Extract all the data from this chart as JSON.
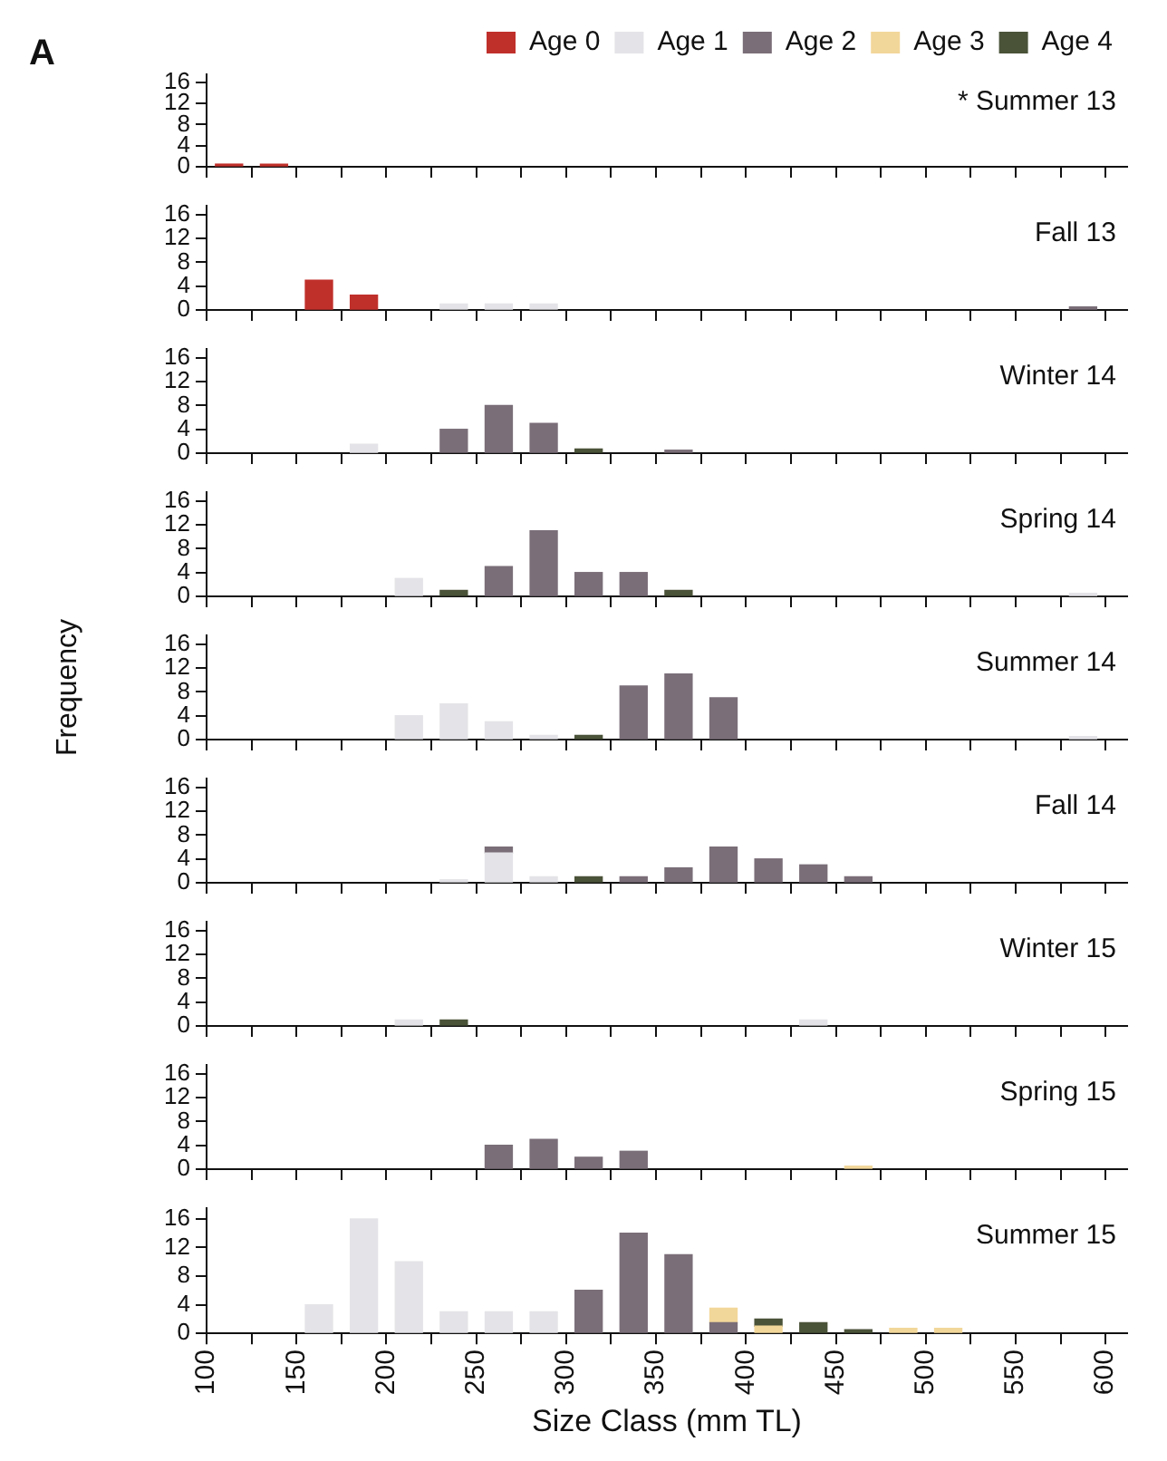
{
  "chart_data": [
    {
      "type": "bar",
      "title": "* Summer 13",
      "annotations": [
        "A"
      ],
      "legend": "top",
      "tick_labels": "y",
      "grid": false,
      "x": [
        112.5,
        137.5
      ],
      "xlim": [
        100,
        612
      ],
      "xticks": [
        100,
        {
          "value": 125,
          "label": null
        },
        150,
        {
          "value": 175,
          "label": null
        },
        200,
        {
          "value": 225,
          "label": null
        },
        250,
        {
          "value": 275,
          "label": null
        },
        300,
        {
          "value": 325,
          "label": null
        },
        350,
        {
          "value": 375,
          "label": null
        },
        400,
        {
          "value": 425,
          "label": null
        },
        450,
        {
          "value": 475,
          "label": null
        },
        500,
        {
          "value": 525,
          "label": null
        },
        550,
        {
          "value": 575,
          "label": null
        },
        600
      ],
      "ylim": [
        0,
        17.5
      ],
      "yticks": [
        0,
        4,
        8,
        12,
        16
      ],
      "series": [
        {
          "name": "Age 0",
          "color": "#c0302b",
          "values": [
            0.5,
            0.5
          ]
        },
        {
          "name": "Age 1",
          "color": "#e4e4e8",
          "values": [
            null,
            null
          ]
        },
        {
          "name": "Age 2",
          "color": "#7a6e78",
          "values": [
            null,
            null
          ]
        },
        {
          "name": "Age 3",
          "color": "#f2d79a",
          "values": [
            null,
            null
          ]
        },
        {
          "name": "Age 4",
          "color": "#4a5238",
          "values": [
            null,
            null
          ]
        }
      ]
    },
    {
      "type": "bar",
      "title": "Fall 13",
      "tick_labels": "y",
      "grid": false,
      "x": [
        162.5,
        187.5,
        237.5,
        262.5,
        287.5,
        587.5
      ],
      "xlim": [
        100,
        612
      ],
      "xticks": [
        100,
        {
          "value": 125,
          "label": null
        },
        150,
        {
          "value": 175,
          "label": null
        },
        200,
        {
          "value": 225,
          "label": null
        },
        250,
        {
          "value": 275,
          "label": null
        },
        300,
        {
          "value": 325,
          "label": null
        },
        350,
        {
          "value": 375,
          "label": null
        },
        400,
        {
          "value": 425,
          "label": null
        },
        450,
        {
          "value": 475,
          "label": null
        },
        500,
        {
          "value": 525,
          "label": null
        },
        550,
        {
          "value": 575,
          "label": null
        },
        600
      ],
      "ylim": [
        0,
        17.5
      ],
      "yticks": [
        0,
        4,
        8,
        12,
        16
      ],
      "series": [
        {
          "color": "#c0302b",
          "values": [
            5,
            2.5,
            null,
            null,
            null,
            null
          ]
        },
        {
          "color": "#e4e4e8",
          "values": [
            null,
            null,
            1,
            1,
            1,
            null
          ]
        },
        {
          "color": "#7a6e78",
          "values": [
            null,
            null,
            null,
            null,
            null,
            0.5
          ]
        }
      ]
    },
    {
      "type": "bar",
      "title": "Winter 14",
      "tick_labels": "y",
      "grid": false,
      "x": [
        187.5,
        237.5,
        262.5,
        287.5,
        312.5,
        362.5
      ],
      "xlim": [
        100,
        612
      ],
      "xticks": [
        100,
        {
          "value": 125,
          "label": null
        },
        150,
        {
          "value": 175,
          "label": null
        },
        200,
        {
          "value": 225,
          "label": null
        },
        250,
        {
          "value": 275,
          "label": null
        },
        300,
        {
          "value": 325,
          "label": null
        },
        350,
        {
          "value": 375,
          "label": null
        },
        400,
        {
          "value": 425,
          "label": null
        },
        450,
        {
          "value": 475,
          "label": null
        },
        500,
        {
          "value": 525,
          "label": null
        },
        550,
        {
          "value": 575,
          "label": null
        },
        600
      ],
      "ylim": [
        0,
        17.5
      ],
      "yticks": [
        0,
        4,
        8,
        12,
        16
      ],
      "series": [
        {
          "color": "#e4e4e8",
          "values": [
            1.5,
            null,
            null,
            null,
            null,
            null
          ]
        },
        {
          "color": "#7a6e78",
          "values": [
            null,
            4,
            8,
            5,
            null,
            0.5
          ]
        },
        {
          "color": "#4a5238",
          "values": [
            null,
            null,
            null,
            null,
            0.7,
            null
          ]
        }
      ]
    },
    {
      "type": "bar",
      "title": "Spring 14",
      "tick_labels": "y",
      "grid": false,
      "x": [
        212.5,
        237.5,
        262.5,
        287.5,
        312.5,
        337.5,
        362.5,
        587.5
      ],
      "xlim": [
        100,
        612
      ],
      "xticks": [
        100,
        {
          "value": 125,
          "label": null
        },
        150,
        {
          "value": 175,
          "label": null
        },
        200,
        {
          "value": 225,
          "label": null
        },
        250,
        {
          "value": 275,
          "label": null
        },
        300,
        {
          "value": 325,
          "label": null
        },
        350,
        {
          "value": 375,
          "label": null
        },
        400,
        {
          "value": 425,
          "label": null
        },
        450,
        {
          "value": 475,
          "label": null
        },
        500,
        {
          "value": 525,
          "label": null
        },
        550,
        {
          "value": 575,
          "label": null
        },
        600
      ],
      "ylim": [
        0,
        17.5
      ],
      "yticks": [
        0,
        4,
        8,
        12,
        16
      ],
      "series": [
        {
          "color": "#e4e4e8",
          "values": [
            3,
            null,
            null,
            null,
            null,
            null,
            null,
            0.5
          ]
        },
        {
          "color": "#7a6e78",
          "values": [
            null,
            null,
            5,
            11,
            4,
            4,
            null,
            null
          ]
        },
        {
          "color": "#4a5238",
          "values": [
            null,
            1,
            null,
            null,
            null,
            null,
            1,
            null
          ]
        }
      ]
    },
    {
      "type": "bar",
      "title": "Summer 14",
      "ylabel": "Frequency",
      "tick_labels": "y",
      "grid": false,
      "x": [
        212.5,
        237.5,
        262.5,
        287.5,
        312.5,
        337.5,
        362.5,
        387.5,
        587.5
      ],
      "xlim": [
        100,
        612
      ],
      "xticks": [
        100,
        {
          "value": 125,
          "label": null
        },
        150,
        {
          "value": 175,
          "label": null
        },
        200,
        {
          "value": 225,
          "label": null
        },
        250,
        {
          "value": 275,
          "label": null
        },
        300,
        {
          "value": 325,
          "label": null
        },
        350,
        {
          "value": 375,
          "label": null
        },
        400,
        {
          "value": 425,
          "label": null
        },
        450,
        {
          "value": 475,
          "label": null
        },
        500,
        {
          "value": 525,
          "label": null
        },
        550,
        {
          "value": 575,
          "label": null
        },
        600
      ],
      "ylim": [
        0,
        17.5
      ],
      "yticks": [
        0,
        4,
        8,
        12,
        16
      ],
      "series": [
        {
          "color": "#e4e4e8",
          "values": [
            4,
            6,
            3,
            0.7,
            null,
            null,
            null,
            null,
            0.5
          ]
        },
        {
          "color": "#7a6e78",
          "values": [
            null,
            null,
            null,
            null,
            null,
            9,
            11,
            7,
            null
          ]
        },
        {
          "color": "#4a5238",
          "values": [
            null,
            null,
            null,
            null,
            0.7,
            null,
            null,
            null,
            null
          ]
        }
      ]
    },
    {
      "type": "bar",
      "stacked": true,
      "title": "Fall 14",
      "tick_labels": "y",
      "grid": false,
      "x": [
        237.5,
        262.5,
        287.5,
        312.5,
        337.5,
        362.5,
        387.5,
        412.5,
        437.5,
        462.5
      ],
      "xlim": [
        100,
        612
      ],
      "xticks": [
        100,
        {
          "value": 125,
          "label": null
        },
        150,
        {
          "value": 175,
          "label": null
        },
        200,
        {
          "value": 225,
          "label": null
        },
        250,
        {
          "value": 275,
          "label": null
        },
        300,
        {
          "value": 325,
          "label": null
        },
        350,
        {
          "value": 375,
          "label": null
        },
        400,
        {
          "value": 425,
          "label": null
        },
        450,
        {
          "value": 475,
          "label": null
        },
        500,
        {
          "value": 525,
          "label": null
        },
        550,
        {
          "value": 575,
          "label": null
        },
        600
      ],
      "ylim": [
        0,
        17.5
      ],
      "yticks": [
        0,
        4,
        8,
        12,
        16
      ],
      "series": [
        {
          "color": "#e4e4e8",
          "values": [
            0.5,
            5,
            1,
            null,
            null,
            null,
            null,
            null,
            null,
            null
          ]
        },
        {
          "color": "#7a6e78",
          "values": [
            null,
            1,
            null,
            null,
            1,
            2.5,
            6,
            4,
            3,
            1
          ]
        },
        {
          "color": "#4a5238",
          "values": [
            null,
            null,
            null,
            1,
            null,
            null,
            null,
            null,
            null,
            null
          ]
        }
      ]
    },
    {
      "type": "bar",
      "title": "Winter 15",
      "tick_labels": "y",
      "grid": false,
      "x": [
        212.5,
        237.5,
        437.5
      ],
      "xlim": [
        100,
        612
      ],
      "xticks": [
        100,
        {
          "value": 125,
          "label": null
        },
        150,
        {
          "value": 175,
          "label": null
        },
        200,
        {
          "value": 225,
          "label": null
        },
        250,
        {
          "value": 275,
          "label": null
        },
        300,
        {
          "value": 325,
          "label": null
        },
        350,
        {
          "value": 375,
          "label": null
        },
        400,
        {
          "value": 425,
          "label": null
        },
        450,
        {
          "value": 475,
          "label": null
        },
        500,
        {
          "value": 525,
          "label": null
        },
        550,
        {
          "value": 575,
          "label": null
        },
        600
      ],
      "ylim": [
        0,
        17.5
      ],
      "yticks": [
        0,
        4,
        8,
        12,
        16
      ],
      "series": [
        {
          "color": "#e4e4e8",
          "values": [
            1,
            null,
            1
          ]
        },
        {
          "color": "#4a5238",
          "values": [
            null,
            1,
            null
          ]
        }
      ]
    },
    {
      "type": "bar",
      "title": "Spring 15",
      "tick_labels": "y",
      "grid": false,
      "x": [
        262.5,
        287.5,
        312.5,
        337.5,
        462.5
      ],
      "xlim": [
        100,
        612
      ],
      "xticks": [
        100,
        {
          "value": 125,
          "label": null
        },
        150,
        {
          "value": 175,
          "label": null
        },
        200,
        {
          "value": 225,
          "label": null
        },
        250,
        {
          "value": 275,
          "label": null
        },
        300,
        {
          "value": 325,
          "label": null
        },
        350,
        {
          "value": 375,
          "label": null
        },
        400,
        {
          "value": 425,
          "label": null
        },
        450,
        {
          "value": 475,
          "label": null
        },
        500,
        {
          "value": 525,
          "label": null
        },
        550,
        {
          "value": 575,
          "label": null
        },
        600
      ],
      "ylim": [
        0,
        17.5
      ],
      "yticks": [
        0,
        4,
        8,
        12,
        16
      ],
      "series": [
        {
          "color": "#7a6e78",
          "values": [
            4,
            5,
            2,
            3,
            null
          ]
        },
        {
          "color": "#f2d79a",
          "values": [
            null,
            null,
            null,
            null,
            0.5
          ]
        }
      ]
    },
    {
      "type": "bar",
      "stacked": true,
      "title": "Summer 15",
      "xlabel": "Size Class (mm TL)",
      "grid": false,
      "x": [
        162.5,
        187.5,
        212.5,
        237.5,
        262.5,
        287.5,
        312.5,
        337.5,
        362.5,
        387.5,
        412.5,
        437.5,
        462.5,
        487.5,
        512.5
      ],
      "xlim": [
        100,
        612
      ],
      "xticks": [
        100,
        {
          "value": 125,
          "label": null
        },
        150,
        {
          "value": 175,
          "label": null
        },
        200,
        {
          "value": 225,
          "label": null
        },
        250,
        {
          "value": 275,
          "label": null
        },
        300,
        {
          "value": 325,
          "label": null
        },
        350,
        {
          "value": 375,
          "label": null
        },
        400,
        {
          "value": 425,
          "label": null
        },
        450,
        {
          "value": 475,
          "label": null
        },
        500,
        {
          "value": 525,
          "label": null
        },
        550,
        {
          "value": 575,
          "label": null
        },
        600
      ],
      "ylim": [
        0,
        17.5
      ],
      "yticks": [
        0,
        4,
        8,
        12,
        16
      ],
      "series": [
        {
          "color": "#e4e4e8",
          "values": [
            4,
            16,
            10,
            3,
            3,
            3,
            null,
            null,
            null,
            null,
            null,
            null,
            null,
            null,
            null
          ]
        },
        {
          "color": "#7a6e78",
          "values": [
            null,
            null,
            null,
            null,
            null,
            null,
            6,
            14,
            11,
            1.5,
            null,
            null,
            null,
            null,
            null
          ]
        },
        {
          "color": "#f2d79a",
          "values": [
            null,
            null,
            null,
            null,
            null,
            null,
            null,
            null,
            null,
            2,
            1,
            null,
            null,
            0.7,
            0.7
          ]
        },
        {
          "color": "#4a5238",
          "values": [
            null,
            null,
            null,
            null,
            null,
            null,
            null,
            null,
            null,
            null,
            1,
            1.5,
            0.5,
            null,
            null
          ]
        }
      ]
    }
  ]
}
